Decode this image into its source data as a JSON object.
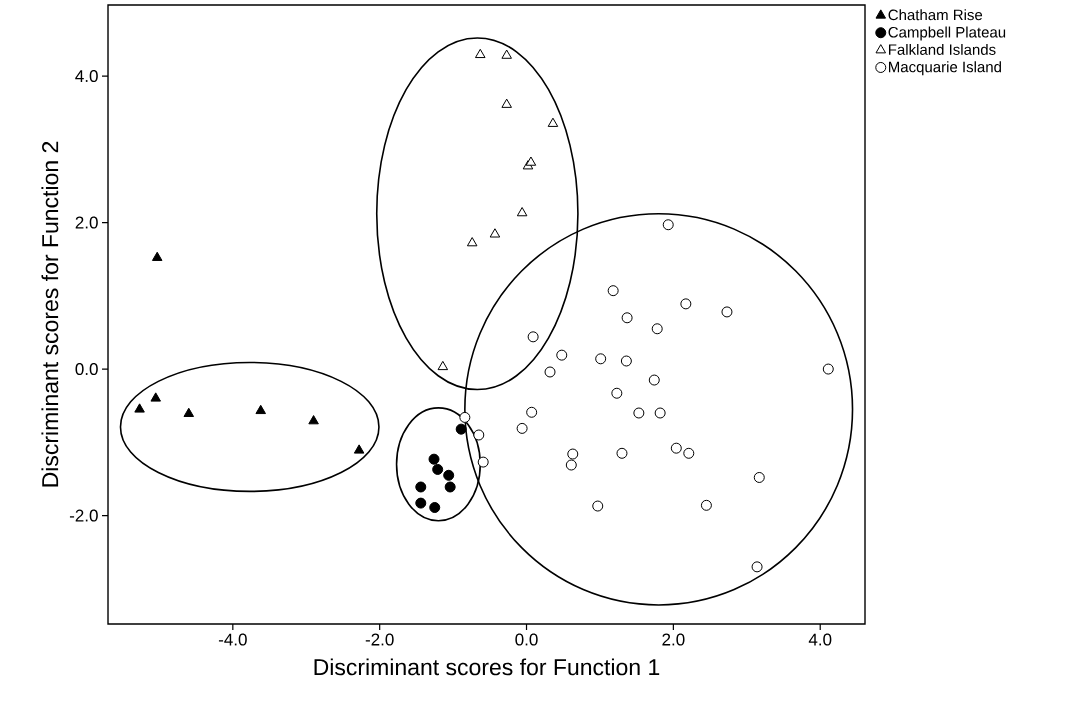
{
  "chart_data": {
    "type": "scatter",
    "xlabel": "Discriminant scores for Function 1",
    "ylabel": "Discriminant scores for Function 2",
    "xlim": [
      -5.7,
      4.61
    ],
    "ylim": [
      -3.48,
      4.97
    ],
    "xticks": [
      {
        "value": -4,
        "label": "-4.0"
      },
      {
        "value": -2,
        "label": "-2.0"
      },
      {
        "value": 0,
        "label": "0.0"
      },
      {
        "value": 2,
        "label": "2.0"
      },
      {
        "value": 4,
        "label": "4.0"
      }
    ],
    "yticks": [
      {
        "value": -2,
        "label": "-2.0"
      },
      {
        "value": 0,
        "label": "0.0"
      },
      {
        "value": 2,
        "label": "2.0"
      },
      {
        "value": 4,
        "label": "4.0"
      }
    ],
    "grid": false,
    "legend": "top right",
    "series": [
      {
        "name": "Chatham Rise",
        "type": "scatter",
        "marker": "triangle",
        "color": "#000000",
        "x": [
          -5.03,
          -5.27,
          -5.05,
          -4.6,
          -3.62,
          -2.9,
          -2.28
        ],
        "values": [
          1.52,
          -0.55,
          -0.4,
          -0.61,
          -0.57,
          -0.71,
          -1.11
        ]
      },
      {
        "name": "Campbell Plateau",
        "type": "scatter",
        "marker": "circle",
        "color": "#000000",
        "x": [
          -0.89,
          -1.26,
          -1.21,
          -1.06,
          -1.04,
          -1.44,
          -1.44,
          -1.25
        ],
        "values": [
          -0.82,
          -1.23,
          -1.37,
          -1.45,
          -1.61,
          -1.61,
          -1.83,
          -1.89
        ]
      },
      {
        "name": "Falkland Islands",
        "type": "scatter",
        "marker": "triangle",
        "color": "#ffffff",
        "x": [
          -0.63,
          -0.27,
          -0.27,
          0.36,
          0.02,
          0.06,
          -0.06,
          -0.43,
          -0.74,
          -1.14
        ],
        "values": [
          4.29,
          4.28,
          3.61,
          3.35,
          2.77,
          2.82,
          2.13,
          1.84,
          1.72,
          0.03
        ]
      },
      {
        "name": "Macquarie Island",
        "type": "scatter",
        "marker": "circle",
        "color": "#ffffff",
        "x": [
          1.93,
          1.18,
          2.17,
          2.73,
          1.37,
          1.78,
          0.09,
          0.48,
          1.01,
          1.36,
          4.11,
          0.32,
          1.74,
          1.23,
          1.53,
          1.82,
          0.07,
          -0.84,
          -0.06,
          -0.65,
          -0.59,
          0.63,
          0.61,
          1.3,
          2.04,
          2.21,
          3.17,
          0.97,
          2.45,
          3.14
        ],
        "values": [
          1.97,
          1.07,
          0.89,
          0.78,
          0.7,
          0.55,
          0.44,
          0.19,
          0.14,
          0.11,
          0.0,
          -0.04,
          -0.15,
          -0.33,
          -0.6,
          -0.6,
          -0.59,
          -0.66,
          -0.81,
          -0.9,
          -1.27,
          -1.16,
          -1.31,
          -1.15,
          -1.08,
          -1.15,
          -1.48,
          -1.87,
          -1.86,
          -2.7
        ]
      }
    ]
  }
}
